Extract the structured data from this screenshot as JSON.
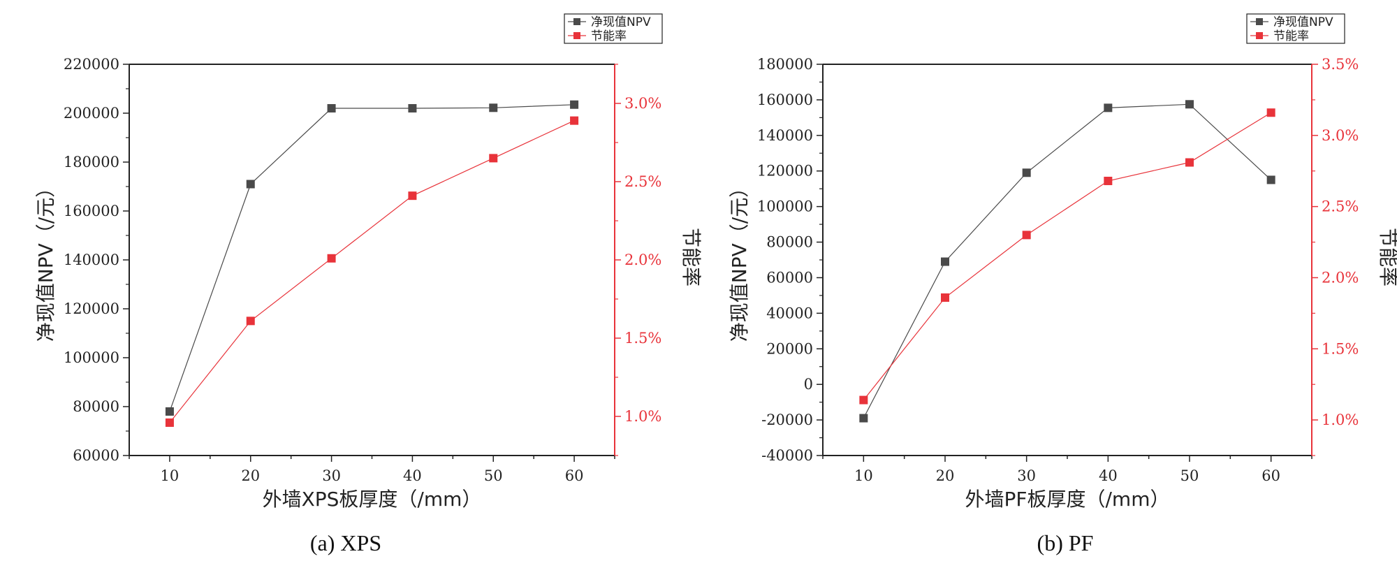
{
  "colors": {
    "npv": "#4a4a4a",
    "rate": "#e8333a",
    "axis": "#222222"
  },
  "chart_data": [
    {
      "type": "line",
      "caption": "(a) XPS",
      "x": [
        10,
        20,
        30,
        40,
        50,
        60
      ],
      "xticks": [
        "10",
        "20",
        "30",
        "40",
        "50",
        "60"
      ],
      "xlim": [
        5,
        65
      ],
      "xlabel": "外墙XPS板厚度（/mm）",
      "ylabel_left": "净现值NPV（/元）",
      "ylabel_right": "节能率",
      "ylim_left": [
        60000,
        220000
      ],
      "yticks_left": [
        "60000",
        "80000",
        "100000",
        "120000",
        "140000",
        "160000",
        "180000",
        "200000",
        "220000"
      ],
      "ylim_right": [
        0.75,
        3.25
      ],
      "yticks_right": [
        {
          "value": 1.0,
          "label": "1.0%"
        },
        {
          "value": 1.5,
          "label": "1.5%"
        },
        {
          "value": 2.0,
          "label": "2.0%"
        },
        {
          "value": 2.5,
          "label": "2.5%"
        },
        {
          "value": 3.0,
          "label": "3.0%"
        }
      ],
      "legend_position": "top-right",
      "series": [
        {
          "name": "净现值NPV",
          "axis": "left",
          "color": "#4a4a4a",
          "values": [
            78000,
            171000,
            202000,
            202000,
            202200,
            203500
          ]
        },
        {
          "name": "节能率",
          "axis": "right",
          "color": "#e8333a",
          "values": [
            0.96,
            1.61,
            2.01,
            2.41,
            2.65,
            2.89
          ]
        }
      ]
    },
    {
      "type": "line",
      "caption": "(b) PF",
      "x": [
        10,
        20,
        30,
        40,
        50,
        60
      ],
      "xticks": [
        "10",
        "20",
        "30",
        "40",
        "50",
        "60"
      ],
      "xlim": [
        5,
        65
      ],
      "xlabel": "外墙PF板厚度（/mm）",
      "ylabel_left": "净现值NPV（/元）",
      "ylabel_right": "节能率",
      "ylim_left": [
        -40000,
        180000
      ],
      "yticks_left": [
        "-40000",
        "-20000",
        "0",
        "20000",
        "40000",
        "60000",
        "80000",
        "100000",
        "120000",
        "140000",
        "160000",
        "180000"
      ],
      "ylim_right": [
        0.75,
        3.5
      ],
      "yticks_right": [
        {
          "value": 1.0,
          "label": "1.0%"
        },
        {
          "value": 1.5,
          "label": "1.5%"
        },
        {
          "value": 2.0,
          "label": "2.0%"
        },
        {
          "value": 2.5,
          "label": "2.5%"
        },
        {
          "value": 3.0,
          "label": "3.0%"
        },
        {
          "value": 3.5,
          "label": "3.5%"
        }
      ],
      "legend_position": "top-right",
      "series": [
        {
          "name": "净现值NPV",
          "axis": "left",
          "color": "#4a4a4a",
          "values": [
            -19000,
            69000,
            119000,
            155500,
            157500,
            115000
          ]
        },
        {
          "name": "节能率",
          "axis": "right",
          "color": "#e8333a",
          "values": [
            1.14,
            1.86,
            2.3,
            2.68,
            2.81,
            3.16
          ]
        }
      ]
    }
  ]
}
